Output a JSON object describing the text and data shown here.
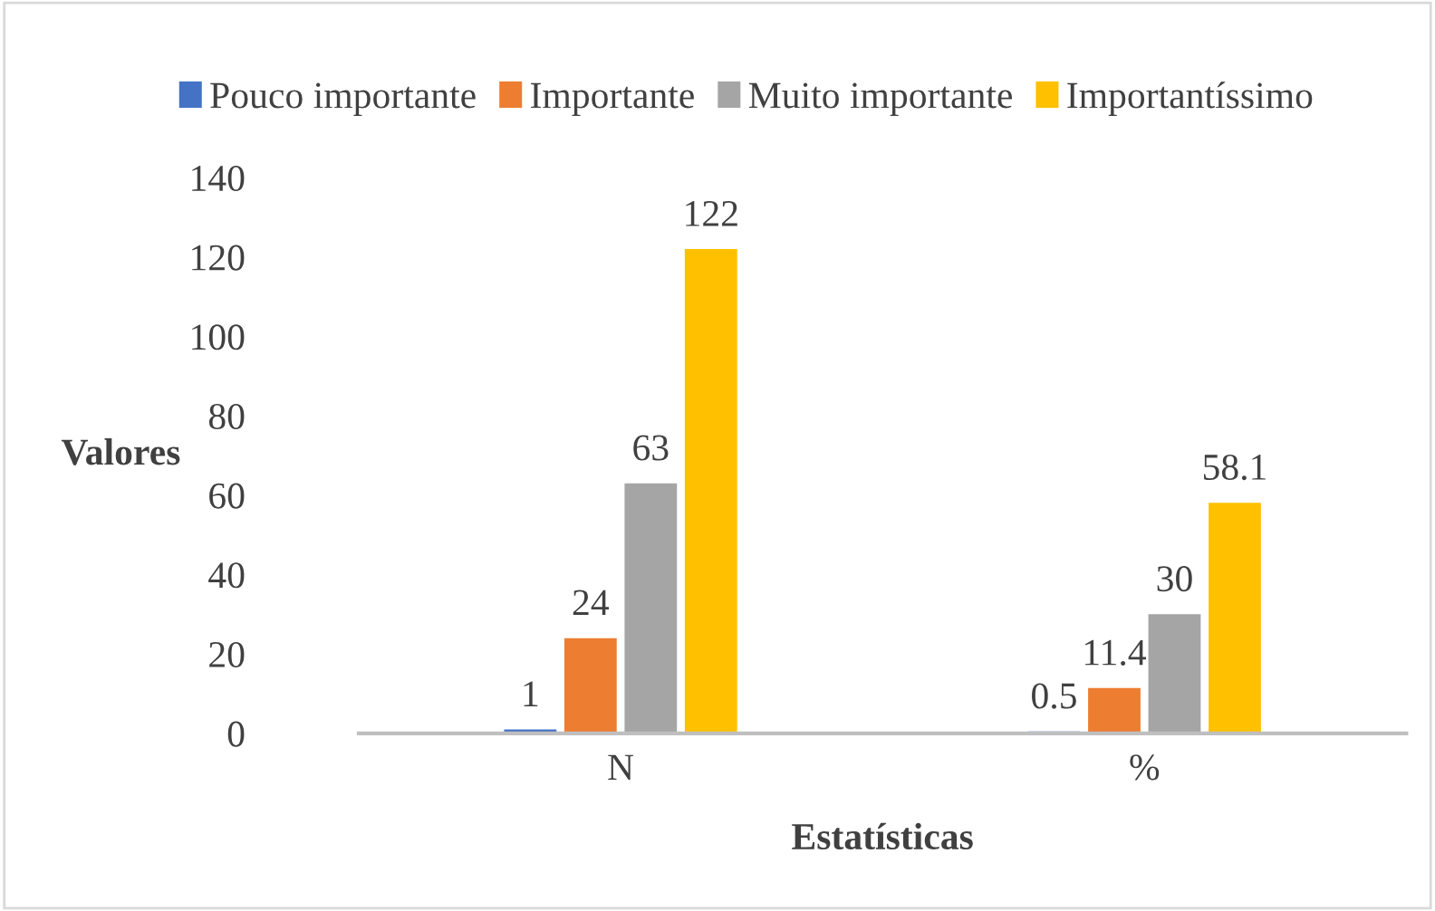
{
  "chart_data": {
    "type": "bar",
    "xlabel": "Estatísticas",
    "ylabel": "Valores",
    "categories": [
      "N",
      "%"
    ],
    "series": [
      {
        "name": "Pouco importante",
        "color": "#4472c4",
        "values": [
          1,
          0.5
        ]
      },
      {
        "name": "Importante",
        "color": "#ed7d31",
        "values": [
          24,
          11.4
        ]
      },
      {
        "name": "Muito importante",
        "color": "#a5a5a5",
        "values": [
          63,
          30
        ]
      },
      {
        "name": "Importantíssimo",
        "color": "#ffc000",
        "values": [
          122,
          58.1
        ]
      }
    ],
    "ylim": [
      0,
      140
    ],
    "yticks": [
      0,
      20,
      40,
      60,
      80,
      100,
      120,
      140
    ],
    "data_labels": true,
    "grid": false,
    "legend": "top"
  }
}
